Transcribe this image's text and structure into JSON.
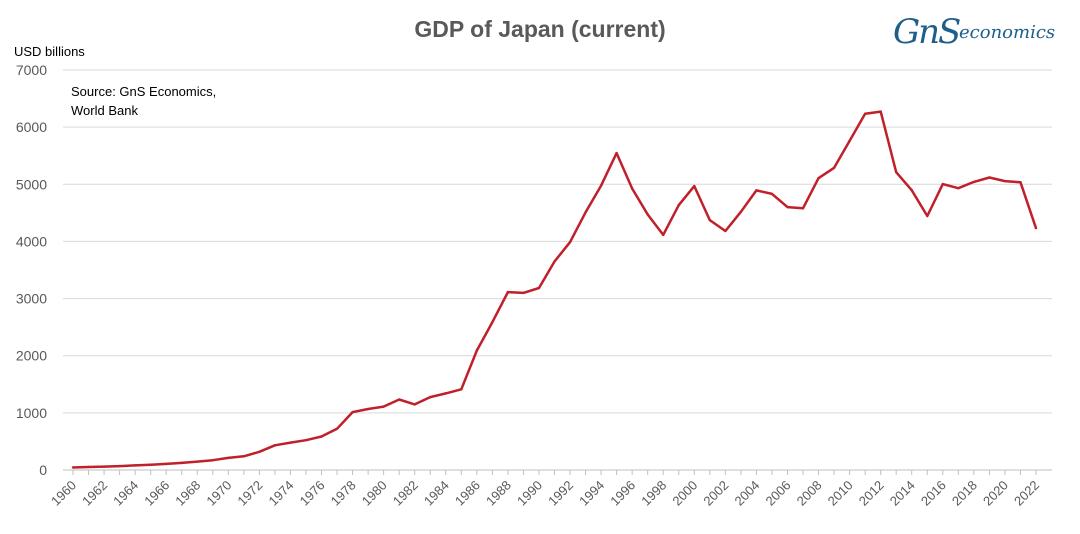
{
  "chart_data": {
    "type": "line",
    "title": "GDP of Japan (current)",
    "ylabel": "USD billions",
    "xlabel": "",
    "source_lines": [
      "Source: GnS Economics,",
      "World Bank"
    ],
    "ylim": [
      0,
      7000
    ],
    "yticks": [
      0,
      1000,
      2000,
      3000,
      4000,
      5000,
      6000,
      7000
    ],
    "xticks": [
      "1960",
      "1962",
      "1964",
      "1966",
      "1968",
      "1970",
      "1972",
      "1974",
      "1976",
      "1978",
      "1980",
      "1982",
      "1984",
      "1986",
      "1988",
      "1990",
      "1992",
      "1994",
      "1996",
      "1998",
      "2000",
      "2002",
      "2004",
      "2006",
      "2008",
      "2010",
      "2012",
      "2014",
      "2016",
      "2018",
      "2020",
      "2022"
    ],
    "grid": true,
    "series": [
      {
        "name": "GDP of Japan",
        "color": "#c0202a",
        "x": [
          1960,
          1961,
          1962,
          1963,
          1964,
          1965,
          1966,
          1967,
          1968,
          1969,
          1970,
          1971,
          1972,
          1973,
          1974,
          1975,
          1976,
          1977,
          1978,
          1979,
          1980,
          1981,
          1982,
          1983,
          1984,
          1985,
          1986,
          1987,
          1988,
          1989,
          1990,
          1991,
          1992,
          1993,
          1994,
          1995,
          1996,
          1997,
          1998,
          1999,
          2000,
          2001,
          2002,
          2003,
          2004,
          2005,
          2006,
          2007,
          2008,
          2009,
          2010,
          2011,
          2012,
          2013,
          2014,
          2015,
          2016,
          2017,
          2018,
          2019,
          2020,
          2021,
          2022
        ],
        "values": [
          44,
          53,
          60,
          69,
          81,
          91,
          106,
          124,
          147,
          172,
          212,
          240,
          318,
          432,
          480,
          521,
          586,
          721,
          1013,
          1067,
          1110,
          1233,
          1148,
          1275,
          1340,
          1412,
          2090,
          2588,
          3113,
          3100,
          3185,
          3648,
          3986,
          4509,
          4977,
          5545,
          4924,
          4472,
          4115,
          4635,
          4968,
          4374,
          4183,
          4519,
          4893,
          4831,
          4601,
          4580,
          5106,
          5289,
          5759,
          6233,
          6272,
          5212,
          4897,
          4445,
          5004,
          4931,
          5041,
          5118,
          5055,
          5034,
          4232
        ]
      }
    ]
  },
  "logo": {
    "monogram": "GnS",
    "wordmark": "economics",
    "color": "#1d5f8a"
  }
}
